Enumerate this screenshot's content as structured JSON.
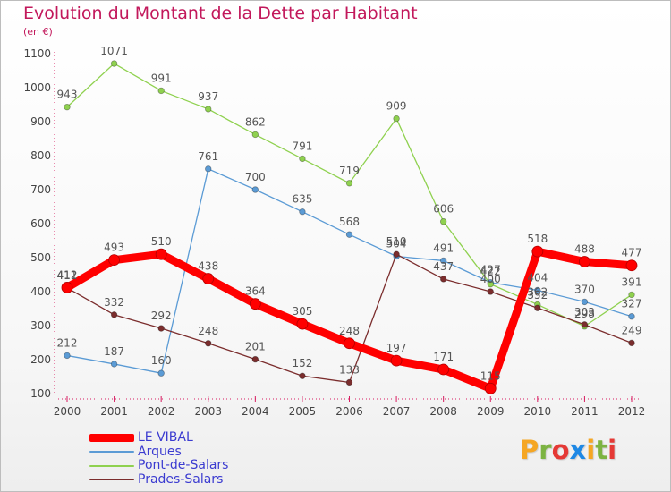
{
  "title": "Evolution du Montant de la Dette par Habitant",
  "subtitle": "(en €)",
  "logo": {
    "text": "Proxiti",
    "letters": [
      {
        "ch": "P",
        "color": "#f5a623"
      },
      {
        "ch": "r",
        "color": "#7cb342"
      },
      {
        "ch": "o",
        "color": "#e53935"
      },
      {
        "ch": "x",
        "color": "#1e88e5"
      },
      {
        "ch": "i",
        "color": "#f5a623"
      },
      {
        "ch": "t",
        "color": "#7cb342"
      },
      {
        "ch": "i",
        "color": "#e53935"
      }
    ]
  },
  "chart_data": {
    "type": "line",
    "title": "Evolution du Montant de la Dette par Habitant",
    "subtitle": "(en €)",
    "xlabel": "",
    "ylabel": "",
    "x": [
      "2000",
      "2001",
      "2002",
      "2003",
      "2004",
      "2005",
      "2006",
      "2007",
      "2008",
      "2009",
      "2010",
      "2011",
      "2012"
    ],
    "ylim": [
      100,
      1100
    ],
    "yticks": [
      100,
      200,
      300,
      400,
      500,
      600,
      700,
      800,
      900,
      1000,
      1100
    ],
    "grid": false,
    "legend_position": "bottom-left",
    "series": [
      {
        "name": "LE VIBAL",
        "color": "#ff0000",
        "values": [
          412,
          493,
          510,
          438,
          364,
          305,
          248,
          197,
          171,
          115,
          518,
          488,
          477
        ],
        "labels": [
          "412",
          "493",
          "510",
          "438",
          "364",
          "305",
          "248",
          "197",
          "171",
          "115",
          "518",
          "488",
          "477"
        ],
        "emphasis": true
      },
      {
        "name": "Arques",
        "color": "#5b9bd5",
        "values": [
          212,
          187,
          160,
          761,
          700,
          635,
          568,
          504,
          491,
          427,
          404,
          370,
          327
        ],
        "labels": [
          "212",
          "187",
          "160",
          "761",
          "700",
          "635",
          "568",
          "504",
          "491",
          "427",
          "404",
          "370",
          "327"
        ]
      },
      {
        "name": "Pont-de-Salars",
        "color": "#8fd14f",
        "values": [
          943,
          1071,
          991,
          937,
          862,
          791,
          719,
          909,
          606,
          422,
          362,
          298,
          391
        ],
        "labels": [
          "943",
          "1071",
          "991",
          "937",
          "862",
          "791",
          "719",
          "909",
          "606",
          "422",
          "362",
          "298",
          "391"
        ]
      },
      {
        "name": "Prades-Salars",
        "color": "#7b2d2d",
        "values": [
          411,
          332,
          292,
          248,
          201,
          152,
          133,
          510,
          437,
          400,
          352,
          303,
          249
        ],
        "labels": [
          "411",
          "332",
          "292",
          "248",
          "201",
          "152",
          "133",
          "510",
          "437",
          "400",
          "352",
          "303",
          "249"
        ]
      }
    ]
  }
}
